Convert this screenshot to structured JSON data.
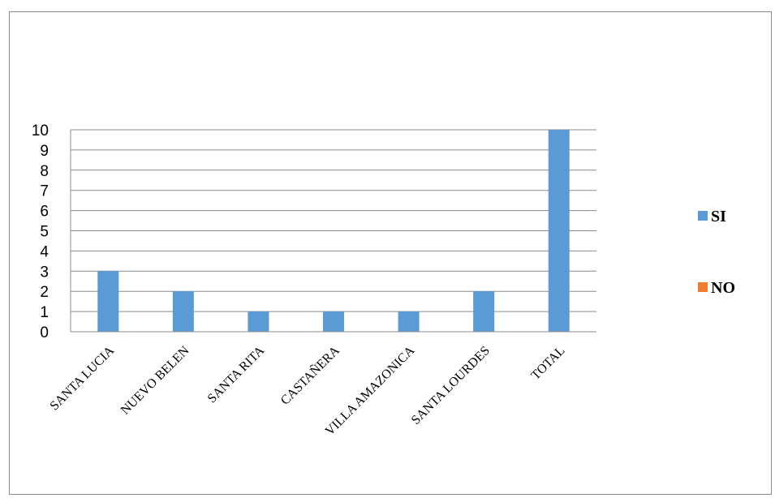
{
  "chart_data": {
    "type": "bar",
    "title": "",
    "xlabel": "",
    "ylabel": "",
    "categories": [
      "SANTA LUCIA",
      "NUEVO BELEN",
      "SANTA RITA",
      "CASTAÑERA",
      "VILLA AMAZONICA",
      "SANTA LOURDES",
      "TOTAL"
    ],
    "series": [
      {
        "name": "SI",
        "color": "#5b9bd5",
        "values": [
          3,
          2,
          1,
          1,
          1,
          2,
          10
        ]
      },
      {
        "name": "NO",
        "color": "#ed7d31",
        "values": [
          0,
          0,
          0,
          0,
          0,
          0,
          0
        ]
      }
    ],
    "ylim": [
      0,
      10
    ],
    "yticks": [
      0,
      1,
      2,
      3,
      4,
      5,
      6,
      7,
      8,
      9,
      10
    ],
    "grid": true,
    "legend_position": "right"
  }
}
